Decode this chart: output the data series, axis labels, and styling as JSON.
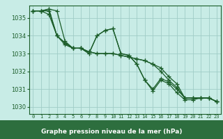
{
  "title": "Graphe pression niveau de la mer (hPa)",
  "bg_color": "#c8ece6",
  "grid_color": "#a0ccc6",
  "line_color": "#1a5c28",
  "x_ticks": [
    0,
    1,
    2,
    3,
    4,
    5,
    6,
    7,
    8,
    9,
    10,
    11,
    12,
    13,
    14,
    15,
    16,
    17,
    18,
    19,
    20,
    21,
    22,
    23
  ],
  "ylim": [
    1029.6,
    1035.7
  ],
  "yticks": [
    1030,
    1031,
    1032,
    1033,
    1034,
    1035
  ],
  "series": [
    [
      1035.4,
      1035.4,
      1035.5,
      1035.4,
      1033.7,
      1033.3,
      1033.3,
      1033.0,
      1034.0,
      1034.3,
      1034.4,
      1033.0,
      1032.9,
      1032.4,
      1031.5,
      1030.9,
      1031.5,
      1031.3,
      1030.8,
      1030.4,
      1030.4,
      1030.5,
      1030.5,
      1030.3
    ],
    [
      1035.4,
      1035.4,
      1035.4,
      1034.0,
      1033.6,
      1033.3,
      1033.3,
      1033.1,
      1033.0,
      1033.0,
      1033.0,
      1032.9,
      1032.8,
      1032.7,
      1032.6,
      1032.4,
      1032.0,
      1031.5,
      1031.1,
      1030.5,
      1030.5,
      1030.5,
      1030.5,
      1030.3
    ],
    [
      1035.4,
      1035.4,
      1035.2,
      1034.0,
      1033.5,
      1033.3,
      1033.3,
      1033.0,
      1034.0,
      1034.3,
      1034.4,
      1033.0,
      1032.9,
      1032.4,
      1031.5,
      1031.0,
      1031.6,
      1031.4,
      1031.0,
      1030.5,
      1030.5,
      1030.5,
      1030.5,
      1030.3
    ],
    [
      1035.4,
      1035.4,
      1035.5,
      1034.0,
      1033.6,
      1033.3,
      1033.3,
      1033.1,
      1033.0,
      1033.0,
      1033.0,
      1032.9,
      1032.8,
      1032.7,
      1032.6,
      1032.4,
      1032.2,
      1031.7,
      1031.3,
      1030.5,
      1030.5,
      1030.5,
      1030.5,
      1030.3
    ]
  ]
}
